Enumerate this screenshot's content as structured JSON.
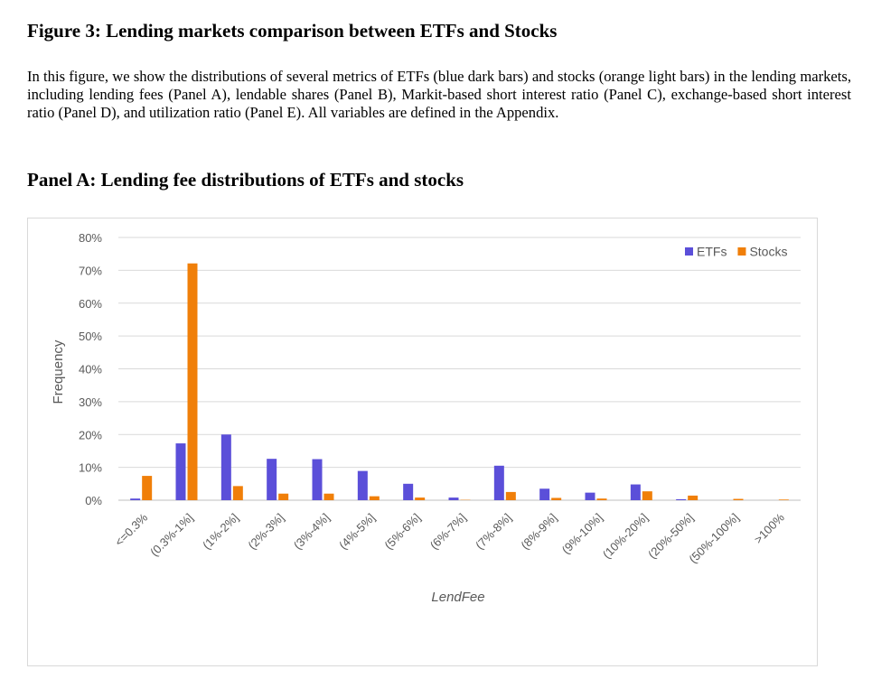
{
  "figure": {
    "title": "Figure 3: Lending markets comparison between ETFs and Stocks",
    "caption": "In this figure, we show the distributions of several metrics of ETFs (blue dark bars) and stocks (orange light bars) in the lending markets, including lending fees (Panel A), lendable shares (Panel B), Markit-based short interest ratio (Panel C), exchange-based short interest ratio (Panel D), and utilization ratio (Panel E). All variables are defined in the Appendix."
  },
  "panel": {
    "title": "Panel A: Lending fee distributions of ETFs and stocks"
  },
  "chart_data": {
    "type": "bar",
    "title": "",
    "xlabel": "LendFee",
    "ylabel": "Frequency",
    "ylim": [
      0,
      80
    ],
    "yticks": [
      "0%",
      "10%",
      "20%",
      "30%",
      "40%",
      "50%",
      "60%",
      "70%",
      "80%"
    ],
    "grid": true,
    "legend_position": "top-right",
    "categories": [
      "<=0.3%",
      "(0.3%-1%]",
      "(1%-2%]",
      "(2%-3%]",
      "(3%-4%]",
      "(4%-5%]",
      "(5%-6%]",
      "(6%-7%]",
      "(7%-8%]",
      "(8%-9%]",
      "(9%-10%]",
      "(10%-20%]",
      "(20%-50%]",
      "(50%-100%]",
      ">100%"
    ],
    "series": [
      {
        "name": "ETFs",
        "color": "#5B4FD9",
        "values": [
          0.5,
          17.3,
          20.0,
          12.6,
          12.5,
          8.9,
          5.0,
          0.8,
          10.5,
          3.5,
          2.3,
          4.8,
          0.3,
          0.0,
          0.0
        ]
      },
      {
        "name": "Stocks",
        "color": "#F07F09",
        "values": [
          7.4,
          72.1,
          4.3,
          2.0,
          2.0,
          1.2,
          0.8,
          0.1,
          2.5,
          0.7,
          0.5,
          2.7,
          1.4,
          0.4,
          0.2
        ]
      }
    ]
  }
}
